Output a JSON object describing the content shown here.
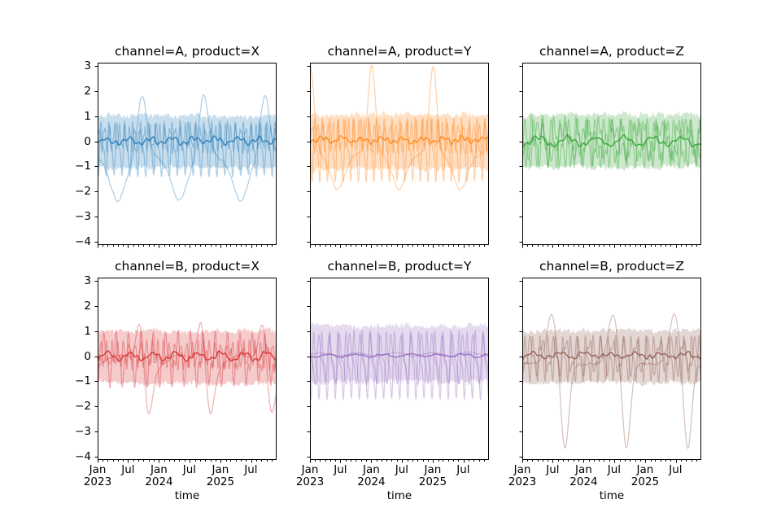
{
  "window": {
    "background": "#ffffff"
  },
  "chart_data": {
    "type": "line",
    "layout": {
      "rows": 2,
      "cols": 3,
      "shared_x": true,
      "shared_y": true,
      "grid": false,
      "legend": "none"
    },
    "facet_grid": {
      "row_values": [
        "channel=A",
        "channel=B"
      ],
      "col_values": [
        "product=X",
        "product=Y",
        "product=Z"
      ]
    },
    "xlabel": "time",
    "ylabel": "",
    "ylim": [
      -4.12,
      3.12
    ],
    "x_span_days": 1064,
    "x_start": "2023-01",
    "x_end": "2025-12",
    "y_ticks": [
      {
        "value": 3,
        "label": "3"
      },
      {
        "value": 2,
        "label": "2"
      },
      {
        "value": 1,
        "label": "1"
      },
      {
        "value": 0,
        "label": "0"
      },
      {
        "value": -1,
        "label": "−1"
      },
      {
        "value": -2,
        "label": "−2"
      },
      {
        "value": -3,
        "label": "−3"
      },
      {
        "value": -4,
        "label": "−4"
      }
    ],
    "x_major_ticks": [
      {
        "day": 0,
        "line1": "Jan",
        "line2": "2023"
      },
      {
        "day": 181,
        "line1": "Jul",
        "line2": ""
      },
      {
        "day": 365,
        "line1": "Jan",
        "line2": "2024"
      },
      {
        "day": 546,
        "line1": "Jul",
        "line2": ""
      },
      {
        "day": 730,
        "line1": "Jan",
        "line2": "2025"
      },
      {
        "day": 911,
        "line1": "Jul",
        "line2": ""
      }
    ],
    "band_alpha": 0.24,
    "unit_alpha": 0.35,
    "mean_alpha": 0.8,
    "facets": [
      {
        "title": "channel=A, product=X",
        "color": "#1f77b4",
        "band": {
          "upper": 1.02,
          "lower": -1.05,
          "fine": 0.1,
          "coarse": 0.07,
          "seed": 11
        },
        "mean": {
          "offset": 0.02,
          "noise": 0.05,
          "nscale": 14,
          "seed": 5,
          "components": [
            [
              "sin",
              0.1,
              130,
              20
            ],
            [
              "sin",
              0.06,
              45,
              5
            ]
          ]
        },
        "units": [
          {
            "offset": -0.55,
            "noise": 0.06,
            "nscale": 12,
            "seed": 21,
            "components": [
              [
                "pulse",
                2.45,
                4.5,
                265
              ],
              [
                "pulse",
                -1.8,
                1.6,
                120
              ]
            ]
          },
          {
            "offset": -0.3,
            "noise": 0.05,
            "nscale": 10,
            "seed": 22,
            "components": [
              [
                "sin",
                0.85,
                47,
                12
              ],
              [
                "sin",
                0.4,
                23.5,
                12
              ]
            ]
          },
          {
            "offset": 0.12,
            "noise": 0.04,
            "nscale": 10,
            "seed": 23,
            "components": [
              [
                "sin",
                0.42,
                30,
                3
              ],
              [
                "sin",
                0.18,
                14,
                1
              ]
            ]
          }
        ]
      },
      {
        "title": "channel=A, product=Y",
        "color": "#ff7f0e",
        "band": {
          "upper": 1.05,
          "lower": -1.1,
          "fine": 0.1,
          "coarse": 0.08,
          "seed": 12
        },
        "mean": {
          "offset": 0.05,
          "noise": 0.05,
          "nscale": 14,
          "seed": 6,
          "components": [
            [
              "sin",
              0.09,
              120,
              40
            ],
            [
              "sin",
              0.06,
              40,
              9
            ]
          ]
        },
        "units": [
          {
            "offset": -0.45,
            "noise": 0.05,
            "nscale": 12,
            "seed": 24,
            "components": [
              [
                "pulse",
                3.45,
                7,
                2
              ],
              [
                "pulse",
                -1.45,
                2.0,
                165
              ]
            ]
          },
          {
            "offset": -0.35,
            "noise": 0.04,
            "nscale": 10,
            "seed": 25,
            "components": [
              [
                "sin",
                0.95,
                46,
                20
              ],
              [
                "sin",
                0.5,
                23,
                20
              ]
            ]
          },
          {
            "offset": 0.18,
            "noise": 0.04,
            "nscale": 10,
            "seed": 26,
            "components": [
              [
                "sin",
                0.5,
                31,
                6
              ],
              [
                "sin",
                0.2,
                15,
                2
              ]
            ]
          }
        ]
      },
      {
        "title": "channel=A, product=Z",
        "color": "#2ca02c",
        "band": {
          "upper": 1.05,
          "lower": -1.02,
          "fine": 0.1,
          "coarse": 0.08,
          "seed": 13
        },
        "mean": {
          "offset": 0.0,
          "noise": 0.05,
          "nscale": 14,
          "seed": 7,
          "components": [
            [
              "sin",
              0.16,
              170,
              55
            ],
            [
              "sin",
              0.06,
              48,
              14
            ]
          ]
        },
        "units": [
          {
            "offset": -0.08,
            "noise": 0.04,
            "nscale": 10,
            "seed": 27,
            "components": [
              [
                "sin",
                0.8,
                52,
                6
              ],
              [
                "sin",
                0.3,
                26,
                6
              ]
            ]
          },
          {
            "offset": 0.0,
            "noise": 0.04,
            "nscale": 10,
            "seed": 28,
            "components": [
              [
                "sin",
                0.72,
                67,
                38
              ],
              [
                "sin",
                0.32,
                22,
                5
              ]
            ]
          },
          {
            "offset": 0.04,
            "noise": 0.04,
            "nscale": 10,
            "seed": 29,
            "components": [
              [
                "sin",
                0.5,
                145,
                65
              ],
              [
                "sin",
                0.32,
                34,
                12
              ]
            ]
          }
        ]
      },
      {
        "title": "channel=B, product=X",
        "color": "#d62728",
        "band": {
          "upper": 1.0,
          "lower": -1.06,
          "fine": 0.09,
          "coarse": 0.07,
          "seed": 14
        },
        "mean": {
          "offset": 0.0,
          "noise": 0.05,
          "nscale": 14,
          "seed": 8,
          "components": [
            [
              "sin",
              0.14,
              135,
              25
            ],
            [
              "sin",
              0.05,
              44,
              6
            ]
          ]
        },
        "units": [
          {
            "offset": -0.2,
            "noise": 0.05,
            "nscale": 12,
            "seed": 30,
            "components": [
              [
                "pulse",
                2.0,
                6,
                255
              ],
              [
                "pulse",
                -2.1,
                5,
                300
              ],
              [
                "sin",
                0.25,
                365,
                40
              ]
            ]
          },
          {
            "offset": -0.12,
            "noise": 0.04,
            "nscale": 10,
            "seed": 31,
            "components": [
              [
                "sin",
                0.72,
                74,
                18
              ],
              [
                "sin",
                0.4,
                24.5,
                6
              ]
            ]
          },
          {
            "offset": 0.06,
            "noise": 0.04,
            "nscale": 10,
            "seed": 32,
            "components": [
              [
                "sin",
                0.45,
                34,
                10
              ],
              [
                "sin",
                0.15,
                16,
                2
              ]
            ]
          }
        ]
      },
      {
        "title": "channel=B, product=Y",
        "color": "#9467bd",
        "band": {
          "upper": 1.22,
          "lower": -1.0,
          "fine": 0.1,
          "coarse": 0.08,
          "seed": 15
        },
        "mean": {
          "offset": 0.03,
          "noise": 0.04,
          "nscale": 16,
          "seed": 9,
          "components": [
            [
              "sin",
              0.06,
              160,
              70
            ]
          ]
        },
        "units": [
          {
            "offset": -0.35,
            "noise": 0.04,
            "nscale": 10,
            "seed": 33,
            "components": [
              [
                "sin",
                1.05,
                48,
                14
              ],
              [
                "sin",
                0.5,
                24,
                14
              ]
            ]
          },
          {
            "offset": -0.15,
            "noise": 0.04,
            "nscale": 10,
            "seed": 34,
            "components": [
              [
                "sin",
                0.8,
                61,
                42
              ],
              [
                "sin",
                0.35,
                30.5,
                12
              ]
            ]
          },
          {
            "offset": 0.08,
            "noise": 0.03,
            "nscale": 18,
            "seed": 35,
            "components": [
              [
                "sin",
                0.07,
                220,
                10
              ]
            ]
          }
        ]
      },
      {
        "title": "channel=B, product=Z",
        "color": "#8c564b",
        "band": {
          "upper": 1.02,
          "lower": -1.03,
          "fine": 0.1,
          "coarse": 0.07,
          "seed": 16
        },
        "mean": {
          "offset": 0.04,
          "noise": 0.05,
          "nscale": 14,
          "seed": 10,
          "components": [
            [
              "sin",
              0.1,
              150,
              35
            ],
            [
              "sin",
              0.05,
              46,
              10
            ]
          ]
        },
        "units": [
          {
            "offset": -0.3,
            "noise": 0.05,
            "nscale": 12,
            "seed": 36,
            "components": [
              [
                "pulse",
                2.0,
                4,
                175
              ],
              [
                "pulse",
                -3.45,
                6,
                253
              ]
            ]
          },
          {
            "offset": -0.1,
            "noise": 0.04,
            "nscale": 10,
            "seed": 37,
            "components": [
              [
                "sin",
                0.7,
                45,
                8
              ],
              [
                "sin",
                0.35,
                22.5,
                8
              ]
            ]
          },
          {
            "offset": 0.0,
            "noise": 0.04,
            "nscale": 10,
            "seed": 38,
            "components": [
              [
                "sin",
                0.55,
                70,
                30
              ],
              [
                "sin",
                0.25,
                28,
                9
              ]
            ]
          }
        ]
      }
    ]
  }
}
